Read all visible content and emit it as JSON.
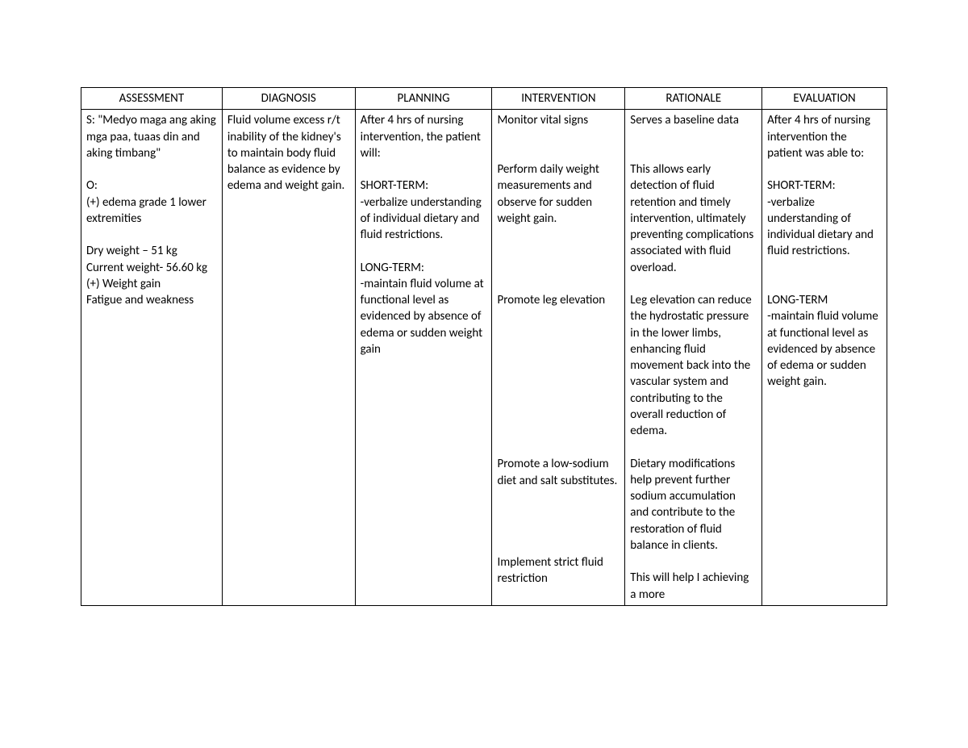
{
  "table": {
    "headers": [
      "ASSESSMENT",
      "DIAGNOSIS",
      "PLANNING",
      "INTERVENTION",
      "RATIONALE",
      "EVALUATION"
    ],
    "assessment": {
      "subjective": "S: \"Medyo maga ang aking mga paa, tuaas din and aking timbang\"",
      "objective_label": "O:",
      "objective_1": "(+) edema grade 1 lower extremities",
      "objective_2a": "Dry weight – 51 kg",
      "objective_2b": "Current weight- 56.60 kg",
      "objective_2c": "(+) Weight gain",
      "objective_2d": "Fatigue and weakness"
    },
    "diagnosis": "Fluid volume excess r/t inability of the kidney's to maintain body fluid balance as evidence by edema and weight gain.",
    "planning": {
      "intro": "After 4 hrs of nursing intervention, the patient will:",
      "short_label": "SHORT-TERM:",
      "short_text": "-verbalize understanding of individual dietary and fluid restrictions.",
      "long_label": "LONG-TERM:",
      "long_text": "-maintain fluid volume at functional level as evidenced by absence of edema or sudden weight gain"
    },
    "interventions": {
      "i1": "Monitor vital signs",
      "i2": "Perform daily weight measurements and observe for sudden weight gain.",
      "i3": "Promote leg elevation",
      "i4": "Promote a low-sodium diet and salt substitutes.",
      "i5": "Implement strict fluid restriction"
    },
    "rationales": {
      "r1": "Serves a baseline data",
      "r2": "This allows early detection of fluid retention and timely intervention, ultimately preventing complications associated with fluid overload.",
      "r3": "Leg elevation can reduce the hydrostatic pressure in the lower limbs, enhancing fluid movement back into the vascular system and contributing to the overall reduction of edema.",
      "r4": "Dietary modifications help prevent further sodium accumulation and contribute to the restoration of fluid balance in clients.",
      "r5": "This will help I achieving a more"
    },
    "evaluation": {
      "intro": "After 4 hrs of nursing intervention the patient was able to:",
      "short_label": "SHORT-TERM:",
      "short_text": "-verbalize understanding of individual dietary and fluid restrictions.",
      "long_label": "LONG-TERM",
      "long_text": "-maintain fluid volume at functional level as evidenced by absence of edema or sudden weight gain."
    }
  },
  "style": {
    "font_family": "Calibri",
    "font_size_pt": 11,
    "text_color": "#000000",
    "border_color": "#000000",
    "background_color": "#ffffff"
  }
}
